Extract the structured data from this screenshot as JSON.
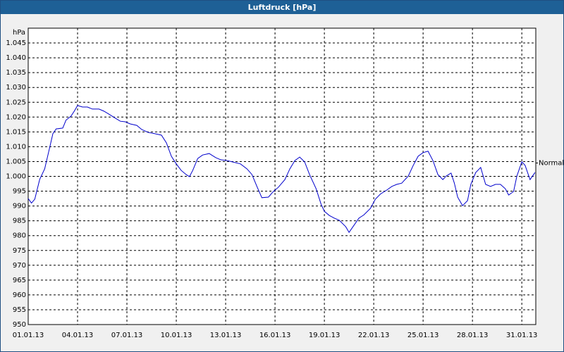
{
  "chart_data": {
    "type": "line",
    "title": "Luftdruck [hPa]",
    "y_label": "hPa",
    "color": "#0000cc",
    "grid": true,
    "x": [
      0,
      0.2,
      0.4,
      0.7,
      1.0,
      1.3,
      1.5,
      1.7,
      2.1,
      2.3,
      2.6,
      2.8,
      3.0,
      3.3,
      3.6,
      3.9,
      4.3,
      4.6,
      4.9,
      5.3,
      5.6,
      5.9,
      6.2,
      6.6,
      6.9,
      7.3,
      7.7,
      8.1,
      8.4,
      8.7,
      9.0,
      9.3,
      9.6,
      9.8,
      10.0,
      10.3,
      10.6,
      11.0,
      11.4,
      11.7,
      12.1,
      12.4,
      12.9,
      13.3,
      13.6,
      13.9,
      14.2,
      14.6,
      14.9,
      15.2,
      15.6,
      15.9,
      16.2,
      16.5,
      16.8,
      17.1,
      17.5,
      17.8,
      18.0,
      18.3,
      18.6,
      18.9,
      19.3,
      19.5,
      19.8,
      20.1,
      20.4,
      20.8,
      21.1,
      21.4,
      21.8,
      22.1,
      22.4,
      22.7,
      23.1,
      23.4,
      23.7,
      24.0,
      24.3,
      24.6,
      24.9,
      25.2,
      25.4,
      25.7,
      25.9,
      26.1,
      26.4,
      26.7,
      26.9,
      27.2,
      27.5,
      27.8,
      28.1,
      28.4,
      28.7,
      29.0,
      29.2,
      29.5,
      29.7,
      30.0,
      30.2,
      30.5,
      30.8
    ],
    "values": [
      992.5,
      991,
      992.3,
      999,
      1002.5,
      1009.6,
      1014.4,
      1016,
      1016.3,
      1019,
      1020.3,
      1022,
      1023.9,
      1023.4,
      1023.4,
      1022.7,
      1022.7,
      1022,
      1021,
      1019.6,
      1018.6,
      1018.4,
      1017.7,
      1017.2,
      1015.8,
      1014.8,
      1014.4,
      1013.9,
      1011.3,
      1006.8,
      1004.2,
      1002,
      1000.6,
      999.9,
      1002,
      1006,
      1007.2,
      1007.7,
      1006.3,
      1005.6,
      1005.3,
      1004.9,
      1004.2,
      1002.5,
      1000.6,
      996.6,
      992.8,
      993,
      994.9,
      996.3,
      998.9,
      1002.5,
      1005.3,
      1006.5,
      1004.9,
      1000.6,
      995.8,
      990.6,
      988.2,
      986.8,
      985.9,
      985.2,
      983,
      981.1,
      983.5,
      985.9,
      987,
      989.2,
      992.3,
      994,
      995.4,
      996.6,
      997.3,
      997.7,
      1000.1,
      1003.7,
      1006.8,
      1008,
      1008.5,
      1005.3,
      1000.6,
      998.9,
      1000.1,
      1001.1,
      997.7,
      993,
      990.1,
      991.8,
      997.3,
      1001.3,
      1003,
      997.3,
      996.6,
      997.3,
      997.3,
      995.8,
      993.7,
      994.9,
      1000.1,
      1004.9,
      1003.7,
      998.9,
      1001.3
    ],
    "xlim": [
      0,
      30.85
    ],
    "xticks": [
      {
        "value": 0,
        "label": "01.01.13"
      },
      {
        "value": 3,
        "label": "04.01.13"
      },
      {
        "value": 6,
        "label": "07.01.13"
      },
      {
        "value": 9,
        "label": "10.01.13"
      },
      {
        "value": 12,
        "label": "13.01.13"
      },
      {
        "value": 15,
        "label": "16.01.13"
      },
      {
        "value": 18,
        "label": "19.01.13"
      },
      {
        "value": 21,
        "label": "22.01.13"
      },
      {
        "value": 24,
        "label": "25.01.13"
      },
      {
        "value": 27,
        "label": "28.01.13"
      },
      {
        "value": 30,
        "label": "31.01.13"
      }
    ],
    "ylim": [
      950,
      1050
    ],
    "yticks": [
      950,
      955,
      960,
      965,
      970,
      975,
      980,
      985,
      990,
      995,
      {
        "value": 1000,
        "label": "1.000"
      },
      {
        "value": 1005,
        "label": "1.005"
      },
      {
        "value": 1010,
        "label": "1.010"
      },
      {
        "value": 1015,
        "label": "1.015"
      },
      {
        "value": 1020,
        "label": "1.020"
      },
      {
        "value": 1025,
        "label": "1.025"
      },
      {
        "value": 1030,
        "label": "1.030"
      },
      {
        "value": 1035,
        "label": "1.035"
      },
      {
        "value": 1040,
        "label": "1.040"
      },
      {
        "value": 1045,
        "label": "1.045"
      }
    ],
    "normal": {
      "text": "Normal",
      "value": 1004.5
    }
  }
}
